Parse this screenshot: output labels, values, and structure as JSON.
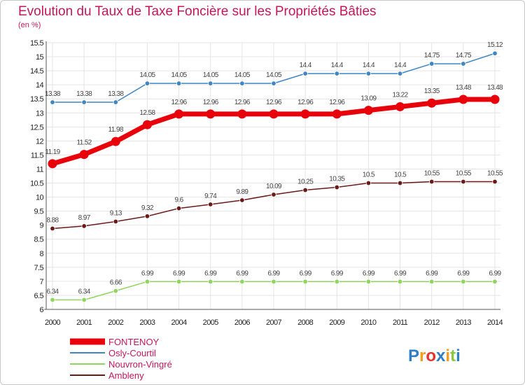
{
  "chart_data": {
    "type": "line",
    "title": "Evolution du Taux de Taxe Foncière sur les Propriétés Bâties",
    "subtitle": "(en %)",
    "xlabel": "",
    "ylabel": "",
    "ylim": [
      6,
      15.5
    ],
    "ytick_step": 0.5,
    "grid": true,
    "x": [
      "2000",
      "2001",
      "2002",
      "2003",
      "2004",
      "2005",
      "2006",
      "2007",
      "2008",
      "2009",
      "2010",
      "2011",
      "2012",
      "2013",
      "2014"
    ],
    "series": [
      {
        "name": "FONTENOY",
        "color": "#e8000b",
        "values": [
          11.19,
          11.52,
          11.98,
          12.58,
          12.96,
          12.96,
          12.96,
          12.96,
          12.96,
          12.96,
          13.09,
          13.22,
          13.35,
          13.48,
          13.48
        ]
      },
      {
        "name": "Osly-Courtil",
        "color": "#3f86c2",
        "values": [
          13.38,
          13.38,
          13.38,
          14.05,
          14.05,
          14.05,
          14.05,
          14.05,
          14.4,
          14.4,
          14.4,
          14.4,
          14.75,
          14.75,
          15.12
        ]
      },
      {
        "name": "Nouvron-Vingré",
        "color": "#8fd65c",
        "values": [
          6.34,
          6.34,
          6.66,
          6.99,
          6.99,
          6.99,
          6.99,
          6.99,
          6.99,
          6.99,
          6.99,
          6.99,
          6.99,
          6.99,
          6.99
        ]
      },
      {
        "name": "Ambleny",
        "color": "#6b1a1a",
        "values": [
          8.88,
          8.97,
          9.13,
          9.32,
          9.6,
          9.74,
          9.89,
          10.09,
          10.25,
          10.35,
          10.5,
          10.5,
          10.55,
          10.55,
          10.55
        ]
      }
    ],
    "data_labels": [
      [
        "11.19",
        "11.52",
        "11.98",
        "12.58",
        "12.96",
        "12.96",
        "12.96",
        "12.96",
        "12.96",
        "12.96",
        "13.09",
        "13.22",
        "13.35",
        "13.48",
        "13.48"
      ],
      [
        "13.38",
        "13.38",
        "13.38",
        "14.05",
        "14.05",
        "14.05",
        "14.05",
        "14.05",
        "14.4",
        "14.4",
        "14.4",
        "14.4",
        "14.75",
        "14.75",
        "15.12"
      ],
      [
        "6.34",
        "6.34",
        "6.66",
        "6.99",
        "6.99",
        "6.99",
        "6.99",
        "6.99",
        "6.99",
        "6.99",
        "6.99",
        "6.99",
        "6.99",
        "6.99",
        "6.99"
      ],
      [
        "8.88",
        "8.97",
        "9.13",
        "9.32",
        "9.6",
        "9.74",
        "9.89",
        "10.09",
        "10.25",
        "10.35",
        "10.5",
        "10.5",
        "10.55",
        "10.55",
        "10.55"
      ]
    ],
    "legend_position": "bottom-left"
  },
  "logo": {
    "letters": [
      "P",
      "r",
      "o",
      "x",
      "i",
      "t",
      "i"
    ],
    "colors": [
      "#2f7fc2",
      "#f39c1f",
      "#e8332a",
      "#2f7fc2",
      "#f39c1f",
      "#8cc63f",
      "#2f7fc2"
    ]
  }
}
